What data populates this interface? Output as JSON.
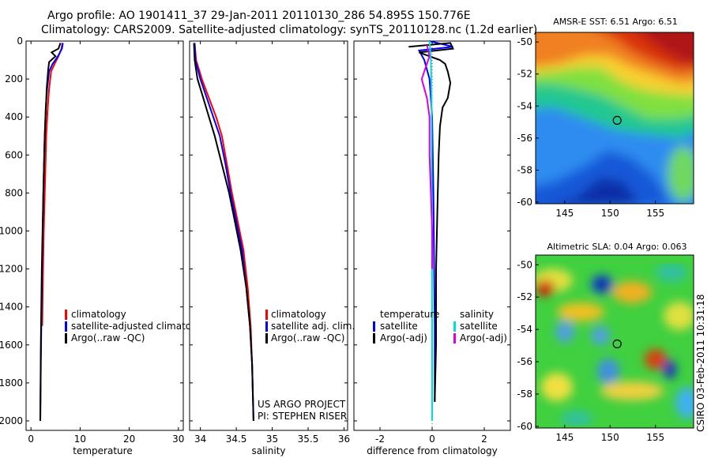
{
  "figure": {
    "title_line1": "Argo profile: AO 1901411_37 29-Jan-2011 20110130_286 54.895S 150.776E",
    "title_line2": "Climatology: CARS2009. Satellite-adjusted climatology: synTS_20110128.nc (1.2d earlier)",
    "side_stamp": "CSIRO 03-Feb-2011 10:31:18"
  },
  "chart_data": [
    {
      "id": "temperature",
      "type": "line",
      "xlabel": "temperature",
      "xlim": [
        -1,
        31
      ],
      "ylim": [
        2050,
        0
      ],
      "xticks": [
        0,
        10,
        20,
        30
      ],
      "yticks": [
        0,
        200,
        400,
        600,
        800,
        1000,
        1200,
        1400,
        1600,
        1800,
        2000
      ],
      "series": [
        {
          "name": "climatology",
          "color": "#ff0000",
          "points": [
            [
              6.4,
              10
            ],
            [
              6.2,
              40
            ],
            [
              5.6,
              80
            ],
            [
              4.8,
              120
            ],
            [
              4.1,
              160
            ],
            [
              3.7,
              250
            ],
            [
              3.4,
              350
            ],
            [
              3.1,
              500
            ],
            [
              2.9,
              700
            ],
            [
              2.6,
              1000
            ],
            [
              2.4,
              1300
            ],
            [
              2.3,
              1500
            ]
          ]
        },
        {
          "name": "satellite-adjusted climatology",
          "color": "#0000ff",
          "points": [
            [
              6.5,
              10
            ],
            [
              6.3,
              40
            ],
            [
              5.5,
              80
            ],
            [
              4.4,
              120
            ],
            [
              3.7,
              160
            ],
            [
              3.3,
              250
            ],
            [
              3.0,
              350
            ],
            [
              2.8,
              500
            ],
            [
              2.6,
              700
            ],
            [
              2.4,
              1000
            ],
            [
              2.2,
              1300
            ],
            [
              2.0,
              1700
            ],
            [
              1.9,
              2000
            ]
          ]
        },
        {
          "name": "Argo(..raw -QC)",
          "color": "#000000",
          "points": [
            [
              6.0,
              10
            ],
            [
              5.6,
              40
            ],
            [
              4.2,
              60
            ],
            [
              5.0,
              80
            ],
            [
              3.7,
              110
            ],
            [
              3.5,
              150
            ],
            [
              3.2,
              250
            ],
            [
              2.8,
              500
            ],
            [
              2.5,
              800
            ],
            [
              2.2,
              1200
            ],
            [
              2.0,
              1600
            ],
            [
              1.9,
              2000
            ]
          ]
        }
      ],
      "legend": [
        "climatology",
        "satellite-adjusted climatology",
        "Argo(..raw -QC)"
      ],
      "legend_position": "lower-right"
    },
    {
      "id": "salinity",
      "type": "line",
      "xlabel": "salinity",
      "xlim": [
        33.85,
        36.05
      ],
      "ylim": [
        2050,
        0
      ],
      "xticks": [
        34,
        34.5,
        35,
        35.5,
        36
      ],
      "series": [
        {
          "name": "climatology",
          "color": "#ff0000",
          "points": [
            [
              33.92,
              10
            ],
            [
              33.94,
              100
            ],
            [
              34.02,
              200
            ],
            [
              34.12,
              300
            ],
            [
              34.22,
              400
            ],
            [
              34.3,
              500
            ],
            [
              34.37,
              650
            ],
            [
              34.44,
              800
            ],
            [
              34.52,
              950
            ],
            [
              34.6,
              1100
            ],
            [
              34.66,
              1300
            ],
            [
              34.7,
              1500
            ],
            [
              34.72,
              1700
            ],
            [
              34.73,
              1850
            ]
          ]
        },
        {
          "name": "satellite adj. clim.",
          "color": "#0000ff",
          "points": [
            [
              33.92,
              10
            ],
            [
              33.93,
              100
            ],
            [
              34.0,
              200
            ],
            [
              34.09,
              300
            ],
            [
              34.18,
              400
            ],
            [
              34.27,
              500
            ],
            [
              34.35,
              650
            ],
            [
              34.42,
              800
            ],
            [
              34.5,
              950
            ],
            [
              34.58,
              1100
            ],
            [
              34.64,
              1300
            ],
            [
              34.69,
              1500
            ],
            [
              34.72,
              1700
            ],
            [
              34.74,
              2000
            ]
          ]
        },
        {
          "name": "Argo(..raw -QC)",
          "color": "#000000",
          "points": [
            [
              33.91,
              10
            ],
            [
              33.92,
              100
            ],
            [
              33.96,
              200
            ],
            [
              34.04,
              300
            ],
            [
              34.12,
              400
            ],
            [
              34.2,
              500
            ],
            [
              34.3,
              650
            ],
            [
              34.4,
              800
            ],
            [
              34.48,
              950
            ],
            [
              34.56,
              1100
            ],
            [
              34.64,
              1300
            ],
            [
              34.69,
              1500
            ],
            [
              34.72,
              1700
            ],
            [
              34.74,
              2000
            ]
          ]
        }
      ],
      "legend": [
        "climatology",
        "satellite adj. clim.",
        "Argo(..raw -QC)"
      ],
      "legend_position": "lower-right",
      "annotation_line1": "US ARGO PROJECT",
      "annotation_line2": "PI: STEPHEN RISER"
    },
    {
      "id": "difference",
      "type": "line",
      "xlabel": "difference from climatology",
      "xlim": [
        -3,
        3
      ],
      "ylim": [
        2050,
        0
      ],
      "xticks": [
        -2,
        0,
        2
      ],
      "series": [
        {
          "name": "temperature satellite",
          "color": "#0000ff",
          "points": [
            [
              -0.1,
              0
            ],
            [
              0.8,
              30
            ],
            [
              -0.5,
              50
            ],
            [
              -0.3,
              100
            ],
            [
              -0.1,
              200
            ],
            [
              0,
              400
            ],
            [
              0.05,
              800
            ],
            [
              0.1,
              1500
            ],
            [
              0.1,
              1900
            ]
          ]
        },
        {
          "name": "temperature Argo(-adj)",
          "color": "#000000",
          "points": [
            [
              -0.9,
              30
            ],
            [
              0.7,
              10
            ],
            [
              0.8,
              40
            ],
            [
              -0.5,
              60
            ],
            [
              0.3,
              100
            ],
            [
              0.5,
              120
            ],
            [
              0.6,
              160
            ],
            [
              0.7,
              220
            ],
            [
              0.6,
              300
            ],
            [
              0.4,
              350
            ],
            [
              0.3,
              450
            ],
            [
              0.25,
              600
            ],
            [
              0.2,
              900
            ],
            [
              0.15,
              1200
            ],
            [
              0.15,
              1600
            ],
            [
              0.1,
              1900
            ]
          ]
        },
        {
          "name": "salinity satellite",
          "color": "#00dddd",
          "points": [
            [
              -0.1,
              0
            ],
            [
              -0.05,
              100
            ],
            [
              -0.02,
              300
            ],
            [
              -0.02,
              600
            ],
            [
              -0.01,
              1000
            ],
            [
              0,
              1500
            ],
            [
              0,
              2000
            ]
          ]
        },
        {
          "name": "salinity Argo(-adj)",
          "color": "#dd00dd",
          "points": [
            [
              -0.2,
              20
            ],
            [
              -0.1,
              80
            ],
            [
              -0.4,
              200
            ],
            [
              -0.2,
              300
            ],
            [
              -0.1,
              400
            ],
            [
              -0.1,
              600
            ],
            [
              -0.05,
              800
            ],
            [
              0,
              1000
            ],
            [
              0,
              1200
            ]
          ]
        }
      ],
      "legend_left_header": "temperature",
      "legend_right_header": "salinity",
      "legend_left": [
        "satellite",
        "Argo(-adj)"
      ],
      "legend_right": [
        "satellite",
        "Argo(-adj)"
      ],
      "legend_position": "lower-center"
    },
    {
      "id": "sst_map",
      "type": "heatmap",
      "title": "AMSR-E SST: 6.51 Argo: 6.51",
      "xlim": [
        141.8,
        159.2
      ],
      "ylim": [
        -60.1,
        -49.4
      ],
      "xticks": [
        145,
        150,
        155
      ],
      "yticks": [
        -50,
        -52,
        -54,
        -56,
        -58,
        -60
      ],
      "marker": [
        150.776,
        -54.895
      ]
    },
    {
      "id": "sla_map",
      "type": "heatmap",
      "title": "Altimetric SLA: 0.04 Argo: 0.063",
      "xlim": [
        141.8,
        159.2
      ],
      "ylim": [
        -60.1,
        -49.4
      ],
      "xticks": [
        145,
        150,
        155
      ],
      "yticks": [
        -50,
        -52,
        -54,
        -56,
        -58,
        -60
      ],
      "marker": [
        150.776,
        -54.895
      ]
    }
  ]
}
